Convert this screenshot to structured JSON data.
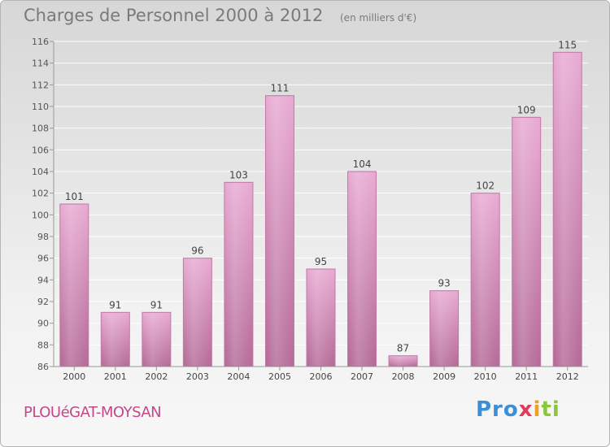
{
  "header": {
    "title": "Charges de Personnel 2000 à 2012",
    "unit_note": "(en milliers d'€)"
  },
  "footer": {
    "town": "PLOUéGAT-MOYSAN",
    "logo_parts": [
      "Pro",
      "x",
      "i",
      "ti"
    ]
  },
  "colors": {
    "bar_fill_top": "#e7a9d0",
    "bar_fill_bottom": "#b56b98",
    "bar_stroke": "#c97fad",
    "text": "#555555",
    "town": "#c2488a"
  },
  "chart_data": {
    "type": "bar",
    "title": "Charges de Personnel 2000 à 2012",
    "xlabel": "",
    "ylabel": "",
    "categories": [
      "2000",
      "2001",
      "2002",
      "2003",
      "2004",
      "2005",
      "2006",
      "2007",
      "2008",
      "2009",
      "2010",
      "2011",
      "2012"
    ],
    "values": [
      101,
      91,
      91,
      96,
      103,
      111,
      95,
      104,
      87,
      93,
      102,
      109,
      115
    ],
    "ylim": [
      86,
      116
    ],
    "yticks": [
      86,
      88,
      90,
      92,
      94,
      96,
      98,
      100,
      102,
      104,
      106,
      108,
      110,
      112,
      114,
      116
    ],
    "grid": true,
    "data_labels": true
  }
}
